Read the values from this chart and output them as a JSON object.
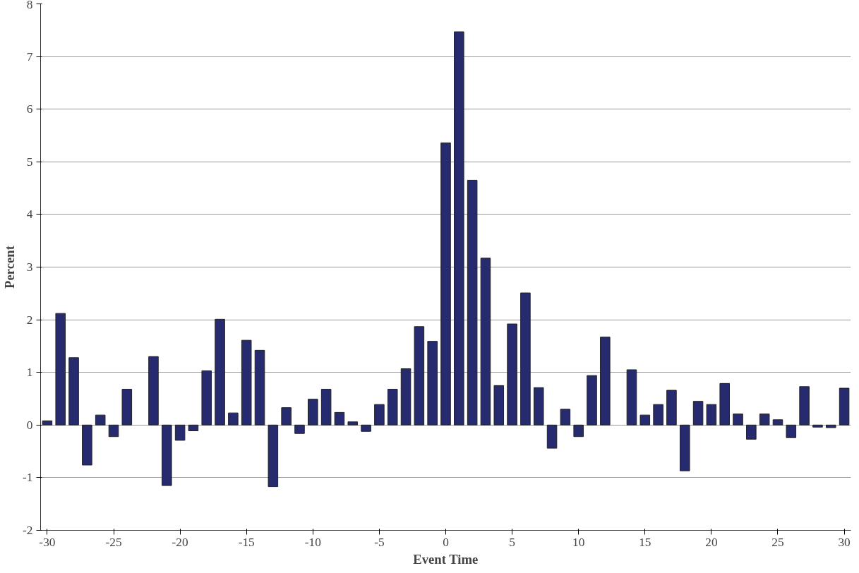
{
  "chart_data": {
    "type": "bar",
    "xlabel": "Event Time",
    "ylabel": "Percent",
    "x": [
      -30,
      -29,
      -28,
      -27,
      -26,
      -25,
      -24,
      -23,
      -22,
      -21,
      -20,
      -19,
      -18,
      -17,
      -16,
      -15,
      -14,
      -13,
      -12,
      -11,
      -10,
      -9,
      -8,
      -7,
      -6,
      -5,
      -4,
      -3,
      -2,
      -1,
      0,
      1,
      2,
      3,
      4,
      5,
      6,
      7,
      8,
      9,
      10,
      11,
      12,
      13,
      14,
      15,
      16,
      17,
      18,
      19,
      20,
      21,
      22,
      23,
      24,
      25,
      26,
      27,
      28,
      29,
      30
    ],
    "series": [
      {
        "color": "#262a6e",
        "values": [
          0.08,
          2.12,
          1.28,
          -0.76,
          0.19,
          -0.22,
          0.68,
          null,
          1.3,
          -1.15,
          -0.29,
          -0.11,
          1.03,
          2.01,
          0.23,
          1.61,
          1.42,
          -1.17,
          0.33,
          -0.16,
          0.49,
          0.68,
          0.24,
          0.06,
          -0.12,
          0.39,
          0.68,
          1.07,
          1.87,
          1.59,
          5.36,
          7.47,
          4.65,
          3.17,
          0.75,
          1.92,
          2.51,
          0.71,
          -0.44,
          0.3,
          -0.22,
          0.94,
          1.67,
          null,
          1.05,
          0.19,
          0.39,
          0.66,
          -0.87,
          0.45,
          0.39,
          0.79,
          0.21,
          -0.27,
          0.21,
          0.1,
          -0.24,
          0.73,
          -0.04,
          -0.05,
          0.7
        ]
      }
    ],
    "xlim": [
      -30.5,
      30.5
    ],
    "xticks": [
      -30,
      -25,
      -20,
      -15,
      -10,
      -5,
      0,
      5,
      10,
      15,
      20,
      25,
      30
    ],
    "ylim": [
      -2,
      8
    ],
    "yticks": [
      -2,
      -1,
      0,
      1,
      2,
      3,
      4,
      5,
      6,
      7,
      8
    ],
    "grid": "y"
  }
}
